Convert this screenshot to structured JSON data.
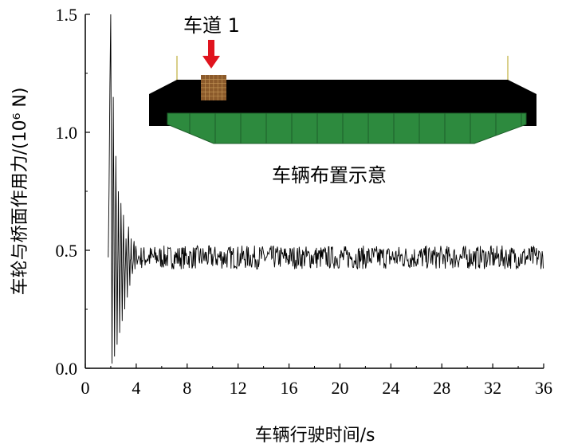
{
  "chart_data": {
    "type": "line",
    "xlabel": "车辆行驶时间/s",
    "ylabel": "车轮与桥面作用力/(10⁶ N)",
    "xlim": [
      0,
      36
    ],
    "ylim": [
      0,
      1.5
    ],
    "x_ticks": [
      "0",
      "4",
      "8",
      "12",
      "16",
      "20",
      "24",
      "28",
      "32",
      "36"
    ],
    "y_ticks": [
      "0.0",
      "0.5",
      "1.0",
      "1.5"
    ],
    "grid": false,
    "series": [
      {
        "color": "#000000",
        "x": [
          1.8,
          2.0,
          2.1,
          2.2,
          2.3,
          2.4,
          2.5,
          2.6,
          2.7,
          2.8,
          2.9,
          3.0,
          3.1,
          3.2,
          3.3,
          3.4,
          3.5,
          3.6,
          3.7,
          3.8,
          3.9,
          4.0,
          4.2,
          4.5,
          5.0,
          6.0,
          8.0,
          12.0,
          16.0,
          20.0,
          24.0,
          28.0,
          32.0,
          36.0
        ],
        "y": [
          0.47,
          1.5,
          0.02,
          1.15,
          0.05,
          0.9,
          0.1,
          0.75,
          0.15,
          0.7,
          0.2,
          0.65,
          0.25,
          0.55,
          0.3,
          0.6,
          0.35,
          0.55,
          0.4,
          0.52,
          0.42,
          0.5,
          0.48,
          0.52,
          0.45,
          0.5,
          0.46,
          0.48,
          0.47,
          0.48,
          0.47,
          0.47,
          0.47,
          0.47
        ],
        "steady_band": [
          0.42,
          0.52
        ]
      }
    ],
    "inset": {
      "lane_label": "车道 1",
      "caption": "车辆布置示意",
      "deck_color": "#000000",
      "girder_color": "#2d8a3e",
      "vehicle_color": "#8b5a2b",
      "arrow_color": "#e0141e"
    }
  }
}
